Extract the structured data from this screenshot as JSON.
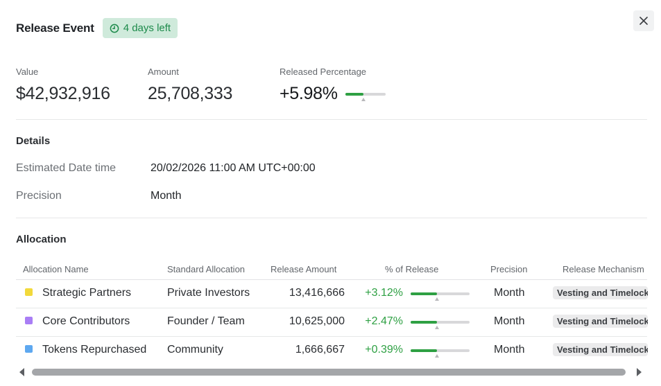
{
  "header": {
    "title": "Release Event",
    "badge": "4 days left"
  },
  "stats": {
    "value_label": "Value",
    "value": "$42,932,916",
    "amount_label": "Amount",
    "amount": "25,708,333",
    "released_label": "Released Percentage",
    "released_pct": "+5.98%",
    "released_fraction": 0.45
  },
  "details": {
    "title": "Details",
    "date_label": "Estimated Date time",
    "date_value": "20/02/2026 11:00 AM UTC+00:00",
    "precision_label": "Precision",
    "precision_value": "Month"
  },
  "allocation": {
    "title": "Allocation",
    "columns": [
      "Allocation Name",
      "Standard Allocation",
      "Release Amount",
      "% of Release",
      "Precision",
      "Release Mechanism"
    ],
    "rows": [
      {
        "name": "Strategic Partners",
        "color": "#f2d93b",
        "standard": "Private Investors",
        "amount": "13,416,666",
        "pct": "+3.12%",
        "fraction": 0.45,
        "precision": "Month",
        "mechanism": "Vesting and Timelock"
      },
      {
        "name": "Core Contributors",
        "color": "#a97ef5",
        "standard": "Founder / Team",
        "amount": "10,625,000",
        "pct": "+2.47%",
        "fraction": 0.45,
        "precision": "Month",
        "mechanism": "Vesting and Timelock"
      },
      {
        "name": "Tokens Repurchased",
        "color": "#5ea8f0",
        "standard": "Community",
        "amount": "1,666,667",
        "pct": "+0.39%",
        "fraction": 0.45,
        "precision": "Month",
        "mechanism": "Vesting and Timelock"
      }
    ]
  },
  "colors": {
    "accent_green": "#2ea043",
    "badge_bg": "#cfeadb",
    "badge_text": "#1c8a4a"
  },
  "icons": {
    "badge_icon": "clock-icon",
    "close_icon": "close-icon"
  }
}
